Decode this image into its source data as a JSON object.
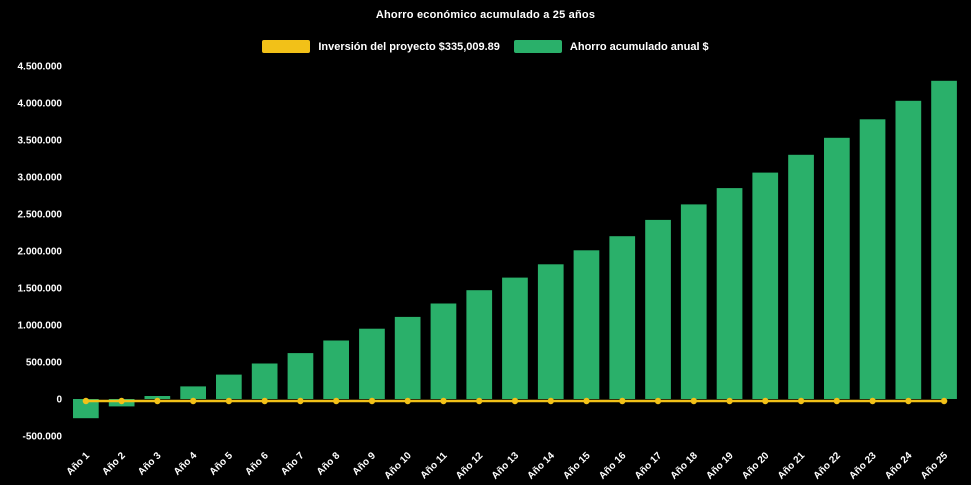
{
  "page": {
    "background_color": "#000000",
    "text_color": "#ffffff"
  },
  "chart_data": {
    "type": "bar",
    "title": "Ahorro económico acumulado a 25 años",
    "xlabel": "",
    "ylabel": "",
    "grid": false,
    "legend_position": "top",
    "ylim": [
      -500000,
      4500000
    ],
    "ytick_values": [
      -500000,
      0,
      500000,
      1000000,
      1500000,
      2000000,
      2500000,
      3000000,
      3500000,
      4000000,
      4500000
    ],
    "ytick_labels": [
      "-500.000",
      "0",
      "500.000",
      "1.000.000",
      "1.500.000",
      "2.000.000",
      "2.500.000",
      "3.000.000",
      "3.500.000",
      "4.000.000",
      "4.500.000"
    ],
    "categories": [
      "Año 1",
      "Año 2",
      "Año 3",
      "Año 4",
      "Año 5",
      "Año 6",
      "Año 7",
      "Año 8",
      "Año 9",
      "Año 10",
      "Año 11",
      "Año 12",
      "Año 13",
      "Año 14",
      "Año 15",
      "Año 16",
      "Año 17",
      "Año 18",
      "Año 19",
      "Año 20",
      "Año 21",
      "Año 22",
      "Año 23",
      "Año 24",
      "Año 25"
    ],
    "series": [
      {
        "name": "Inversión del proyecto $335,009.89",
        "type": "line",
        "color": "#f2c118",
        "marker": "dot",
        "values": [
          0,
          0,
          0,
          0,
          0,
          0,
          0,
          0,
          0,
          0,
          0,
          0,
          0,
          0,
          0,
          0,
          0,
          0,
          0,
          0,
          0,
          0,
          0,
          0,
          0
        ]
      },
      {
        "name": "Ahorro acumulado anual $",
        "type": "bar",
        "color": "#2ab06a",
        "values": [
          -260000,
          -100000,
          40000,
          170000,
          330000,
          480000,
          620000,
          790000,
          950000,
          1110000,
          1290000,
          1470000,
          1640000,
          1820000,
          2010000,
          2200000,
          2420000,
          2630000,
          2850000,
          3060000,
          3300000,
          3530000,
          3780000,
          4030000,
          4300000
        ]
      }
    ]
  }
}
